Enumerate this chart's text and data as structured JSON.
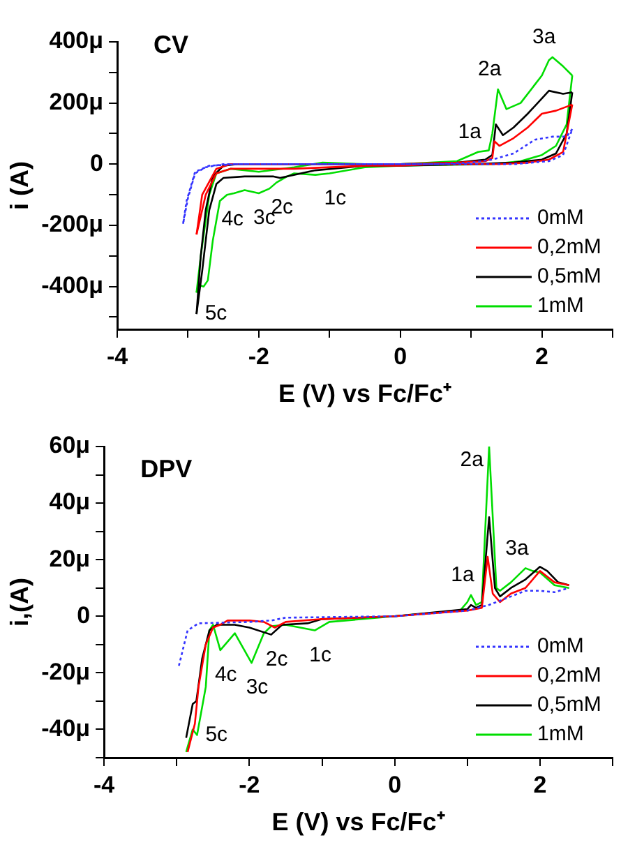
{
  "chart_data": [
    {
      "type": "line",
      "title": "CV",
      "xlabel": "E (V) vs Fc/Fc⁺",
      "ylabel": "i (A)",
      "xlim": [
        -4,
        3
      ],
      "xticks": [
        -4,
        {
          "value": -3,
          "label": null
        },
        -2,
        {
          "value": -1,
          "label": null
        },
        0,
        {
          "value": 1,
          "label": null
        },
        2,
        {
          "value": 3,
          "label": null
        }
      ],
      "ylim": [
        -540,
        400
      ],
      "yticks": [
        {
          "value": 400,
          "label": "400μ"
        },
        {
          "value": 300,
          "label": null
        },
        {
          "value": 200,
          "label": "200μ"
        },
        {
          "value": 100,
          "label": null
        },
        0,
        {
          "value": -100,
          "label": null
        },
        {
          "value": -200,
          "label": "-200μ"
        },
        {
          "value": -300,
          "label": null
        },
        {
          "value": -400,
          "label": "-400μ"
        },
        {
          "value": -500,
          "label": null
        }
      ],
      "grid": false,
      "legend": "bottom right",
      "marker": "none",
      "series": [
        {
          "name": "0mM",
          "color": "#3333ff",
          "line_style": "dotted",
          "x": [
            -3.07,
            -3.02,
            -2.9,
            -2.7,
            -2.3,
            -1,
            0,
            0.8,
            1.6,
            2.1,
            2.3,
            2.43
          ],
          "values": [
            -195,
            -120,
            -25,
            -5,
            0,
            0,
            0,
            0,
            0,
            10,
            30,
            115
          ]
        },
        {
          "color": "#3333ff",
          "line_style": "dotted",
          "x": [
            2.43,
            2.35,
            2.15,
            1.9,
            1.6,
            1.3,
            1.0,
            0.5,
            0,
            -1,
            -2,
            -2.5,
            -2.75,
            -2.9,
            -3.0,
            -3.07
          ],
          "values": [
            115,
            90,
            90,
            80,
            35,
            15,
            5,
            0,
            0,
            0,
            0,
            0,
            -10,
            -30,
            -110,
            -195
          ]
        },
        {
          "name": "0,2mM",
          "color": "#ff0000",
          "line_style": "solid",
          "x": [
            -2.88,
            -2.8,
            -2.6,
            -2.4,
            -1.5,
            0,
            0.8,
            1.2,
            1.3,
            1.33,
            1.4,
            1.6,
            1.8,
            2.0,
            2.2,
            2.43
          ],
          "values": [
            -230,
            -100,
            -15,
            0,
            0,
            0,
            5,
            10,
            20,
            75,
            60,
            85,
            120,
            165,
            175,
            195
          ]
        },
        {
          "color": "#ff0000",
          "line_style": "solid",
          "x": [
            2.43,
            2.3,
            2.1,
            1.8,
            1.4,
            0.5,
            0,
            -0.5,
            -1.5,
            -2.4,
            -2.6,
            -2.75,
            -2.85,
            -2.88
          ],
          "values": [
            195,
            40,
            15,
            5,
            0,
            0,
            -5,
            -5,
            -15,
            -15,
            -30,
            -100,
            -200,
            -230
          ]
        },
        {
          "name": "0,5mM",
          "color": "#000000",
          "line_style": "solid",
          "x": [
            -2.88,
            -2.82,
            -2.75,
            -2.65,
            -2.5,
            -2.3,
            -1,
            0,
            0.8,
            1.2,
            1.3,
            1.35,
            1.45,
            1.6,
            1.8,
            2.0,
            2.1,
            2.3,
            2.43
          ],
          "values": [
            -490,
            -300,
            -150,
            -40,
            -5,
            0,
            0,
            0,
            5,
            15,
            30,
            130,
            95,
            120,
            165,
            215,
            240,
            230,
            235
          ]
        },
        {
          "color": "#000000",
          "line_style": "solid",
          "x": [
            2.43,
            2.35,
            2.2,
            2.0,
            1.6,
            1.0,
            0,
            -0.5,
            -1.2,
            -1.7,
            -1.8,
            -2.2,
            -2.5,
            -2.6,
            -2.7,
            -2.8,
            -2.88
          ],
          "values": [
            235,
            100,
            35,
            15,
            5,
            0,
            -5,
            -5,
            -20,
            -45,
            -40,
            -40,
            -45,
            -65,
            -150,
            -350,
            -490
          ]
        },
        {
          "name": "1mM",
          "color": "#00dd00",
          "line_style": "solid",
          "x": [
            -2.88,
            -2.82,
            -2.7,
            -2.6,
            -2.4,
            -2.0,
            -1.5,
            -1.1,
            -0.5,
            0,
            0.8,
            1.1,
            1.25,
            1.3,
            1.38,
            1.5,
            1.7,
            1.9,
            2.0,
            2.1,
            2.15,
            2.3,
            2.43
          ],
          "values": [
            -420,
            -300,
            -100,
            -30,
            -15,
            -25,
            -10,
            5,
            0,
            0,
            10,
            40,
            45,
            100,
            245,
            180,
            200,
            260,
            290,
            340,
            350,
            320,
            290
          ]
        },
        {
          "color": "#00dd00",
          "line_style": "solid",
          "x": [
            2.43,
            2.35,
            2.2,
            2.0,
            1.7,
            1.3,
            0,
            -0.5,
            -1.0,
            -1.2,
            -1.5,
            -1.6,
            -1.75,
            -1.85,
            -2.0,
            -2.1,
            -2.2,
            -2.35,
            -2.45,
            -2.55,
            -2.65,
            -2.72,
            -2.78,
            -2.85,
            -2.88
          ],
          "values": [
            290,
            130,
            60,
            30,
            10,
            0,
            -5,
            -10,
            -30,
            -35,
            -30,
            -40,
            -60,
            -80,
            -95,
            -90,
            -85,
            -95,
            -100,
            -120,
            -250,
            -380,
            -400,
            -395,
            -420
          ]
        }
      ],
      "annotations": [
        {
          "text": "1a",
          "x": 1.1,
          "y": 40
        },
        {
          "text": "2a",
          "x": 1.38,
          "y": 245
        },
        {
          "text": "3a",
          "x": 2.15,
          "y": 350
        },
        {
          "text": "1c",
          "x": -1.0,
          "y": -30
        },
        {
          "text": "2c",
          "x": -1.75,
          "y": -60
        },
        {
          "text": "3c",
          "x": -2.0,
          "y": -95
        },
        {
          "text": "4c",
          "x": -2.45,
          "y": -100
        },
        {
          "text": "5c",
          "x": -2.88,
          "y": -490
        }
      ]
    },
    {
      "type": "line",
      "title": "DPV",
      "xlabel": "E (V) vs Fc/Fc⁺",
      "ylabel": "i,(A)",
      "xlim": [
        -4,
        3
      ],
      "xticks": [
        -4,
        {
          "value": -3,
          "label": null
        },
        -2,
        {
          "value": -1,
          "label": null
        },
        0,
        {
          "value": 1,
          "label": null
        },
        2,
        {
          "value": 3,
          "label": null
        }
      ],
      "ylim": [
        -50,
        60
      ],
      "yticks": [
        {
          "value": 60,
          "label": "60μ"
        },
        {
          "value": 50,
          "label": null
        },
        {
          "value": 40,
          "label": "40μ"
        },
        {
          "value": 30,
          "label": null
        },
        {
          "value": 20,
          "label": "20μ"
        },
        {
          "value": 10,
          "label": null
        },
        0,
        {
          "value": -10,
          "label": null
        },
        {
          "value": -20,
          "label": "-20μ"
        },
        {
          "value": -30,
          "label": null
        },
        {
          "value": -40,
          "label": "-40μ"
        },
        {
          "value": -50,
          "label": null
        }
      ],
      "grid": false,
      "legend": "bottom right",
      "marker": "none",
      "series": [
        {
          "name": "0mM",
          "color": "#3333ff",
          "line_style": "dotted",
          "x": [
            -2.97,
            -2.85,
            -2.7,
            -2.0,
            -1.7,
            -1.5,
            0,
            1.0,
            1.3,
            1.6,
            1.8,
            2.0,
            2.2,
            2.4
          ],
          "values": [
            -17.5,
            -5,
            -2.5,
            -2,
            -1.5,
            -0.5,
            0,
            2,
            4,
            7,
            9,
            9,
            8.5,
            10
          ]
        },
        {
          "name": "0,2mM",
          "color": "#ff0000",
          "line_style": "solid",
          "x": [
            -2.85,
            -2.75,
            -2.7,
            -2.6,
            -2.5,
            -2.4,
            -2.3,
            -2.0,
            -1.8,
            -1.65,
            -1.5,
            -1.0,
            0,
            1.0,
            1.2,
            1.28,
            1.35,
            1.45,
            1.6,
            1.8,
            2.0,
            2.1,
            2.2,
            2.4
          ],
          "values": [
            -48,
            -38,
            -25,
            -10,
            -4,
            -3,
            -1.5,
            -1.5,
            -2,
            -4,
            -2,
            -1,
            0,
            2,
            3,
            21,
            8,
            5,
            8,
            10,
            16,
            14,
            12,
            11
          ]
        },
        {
          "name": "0,5mM",
          "color": "#000000",
          "line_style": "solid",
          "x": [
            -2.87,
            -2.78,
            -2.73,
            -2.65,
            -2.55,
            -2.45,
            -2.2,
            -2.0,
            -1.7,
            -1.55,
            -1.2,
            -1.0,
            0,
            1.0,
            1.05,
            1.12,
            1.2,
            1.3,
            1.38,
            1.45,
            1.6,
            1.8,
            2.0,
            2.1,
            2.25,
            2.4
          ],
          "values": [
            -43,
            -31,
            -30,
            -15,
            -5,
            -3,
            -3,
            -4,
            -6.5,
            -3,
            -2.5,
            -1,
            0,
            2.5,
            4,
            3,
            4,
            35,
            10,
            7,
            10,
            13,
            17.5,
            16,
            12,
            11
          ]
        },
        {
          "name": "1mM",
          "color": "#00dd00",
          "line_style": "solid",
          "x": [
            -2.87,
            -2.78,
            -2.72,
            -2.6,
            -2.55,
            -2.5,
            -2.4,
            -2.2,
            -1.97,
            -1.8,
            -1.7,
            -1.5,
            -1.1,
            -0.9,
            0,
            0.9,
            1.0,
            1.05,
            1.12,
            1.2,
            1.3,
            1.4,
            1.45,
            1.6,
            1.8,
            1.9,
            2.0,
            2.2,
            2.4
          ],
          "values": [
            -48,
            -40,
            -42,
            -25,
            -5,
            -3,
            -12,
            -6,
            -16.5,
            -6,
            -3.5,
            -3,
            -5,
            -2,
            0,
            2,
            5,
            7.5,
            4,
            5,
            60,
            10,
            9,
            12,
            17,
            16,
            15.5,
            11,
            10
          ]
        }
      ],
      "annotations": [
        {
          "text": "1a",
          "x": 1.05,
          "y": 7.5
        },
        {
          "text": "2a",
          "x": 1.3,
          "y": 60
        },
        {
          "text": "3a",
          "x": 1.8,
          "y": 17
        },
        {
          "text": "1c",
          "x": -1.1,
          "y": -5
        },
        {
          "text": "2c",
          "x": -1.7,
          "y": -6.5
        },
        {
          "text": "3c",
          "x": -1.97,
          "y": -16.5
        },
        {
          "text": "4c",
          "x": -2.4,
          "y": -12
        },
        {
          "text": "5c",
          "x": -2.72,
          "y": -42
        }
      ]
    }
  ]
}
